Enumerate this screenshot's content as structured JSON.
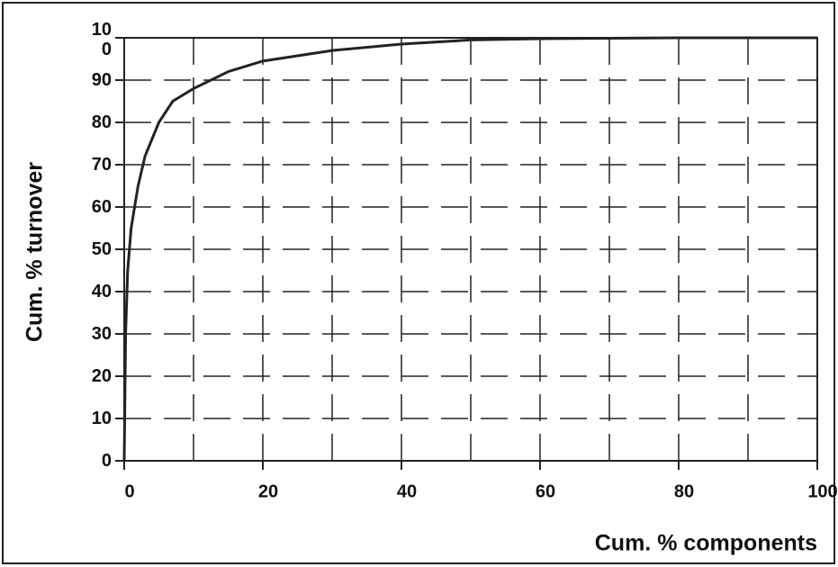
{
  "chart_data": {
    "type": "line",
    "x_label": "Cum. % components",
    "y_label": "Cum. % turnover",
    "x": [
      0,
      0.2,
      0.5,
      1,
      2,
      3,
      5,
      7,
      10,
      15,
      20,
      30,
      40,
      50,
      60,
      80,
      100
    ],
    "values": [
      0,
      30,
      45,
      55,
      65,
      72,
      80,
      85,
      88,
      92,
      94.5,
      97,
      98.5,
      99.5,
      99.8,
      100,
      100
    ],
    "color": "#222222",
    "xlim": [
      0,
      100
    ],
    "xticks": [
      0,
      20,
      40,
      60,
      80,
      100
    ],
    "ylim": [
      0,
      100
    ],
    "yticks": [
      0,
      10,
      20,
      30,
      40,
      50,
      60,
      70,
      80,
      90,
      100
    ],
    "grid": true
  }
}
